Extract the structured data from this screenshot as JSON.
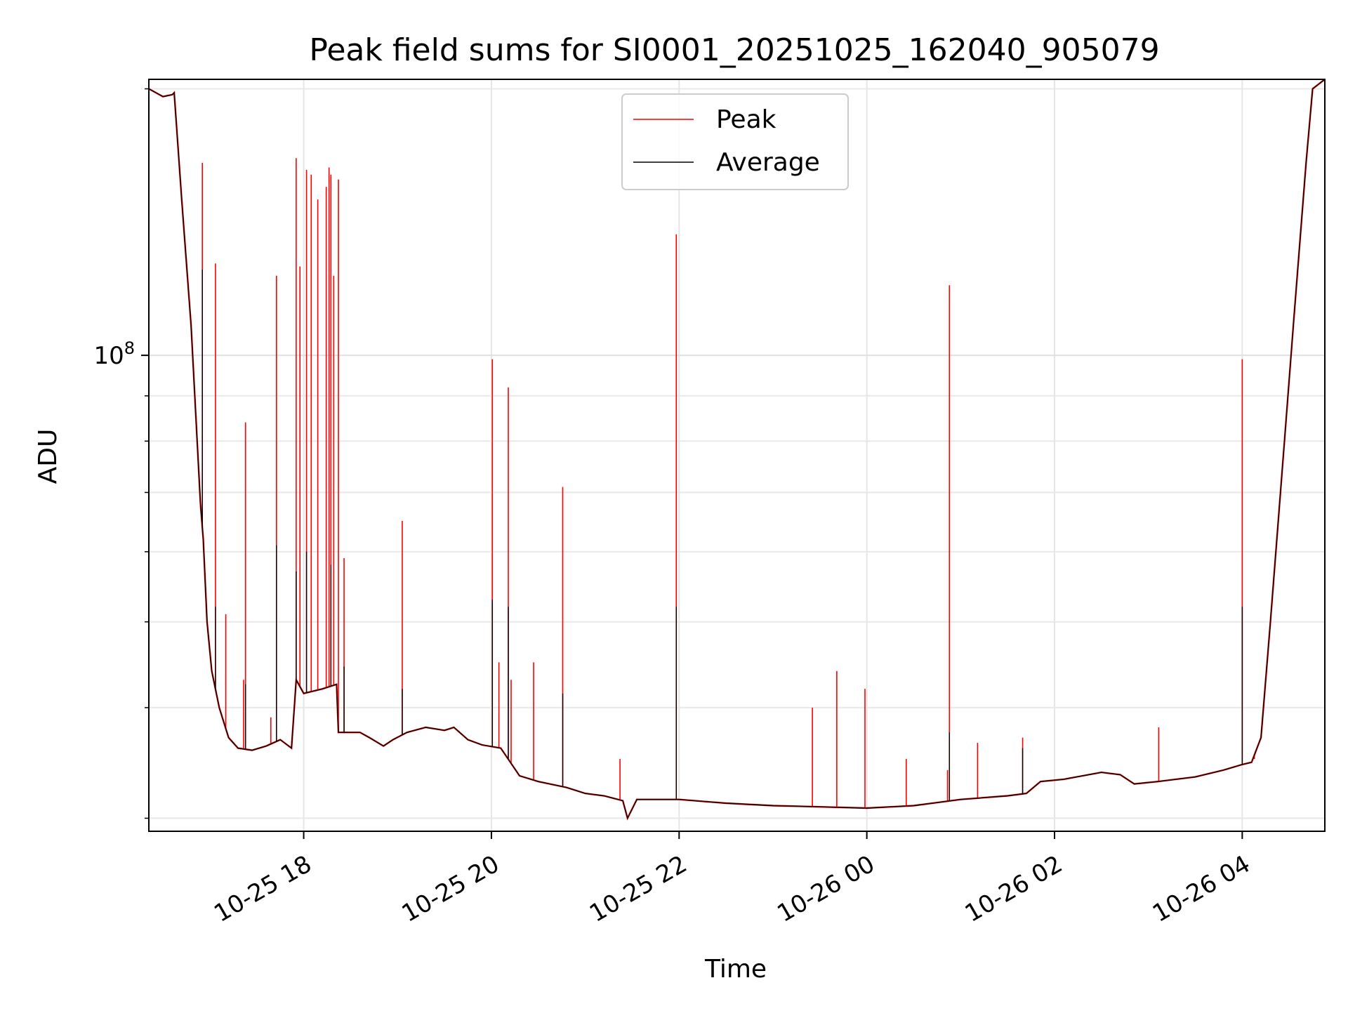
{
  "chart_data": {
    "type": "line",
    "title": "Peak field sums for SI0001_20251025_162040_905079",
    "xlabel": "Time",
    "ylabel": "ADU",
    "yscale": "log",
    "ylim": [
      29000000,
      205000000
    ],
    "xlim_hours": [
      16.35,
      28.88
    ],
    "grid": true,
    "legend_position": "top-center",
    "x_ticks": [
      {
        "hours": 18,
        "label": "10-25 18"
      },
      {
        "hours": 20,
        "label": "10-25 20"
      },
      {
        "hours": 22,
        "label": "10-25 22"
      },
      {
        "hours": 24,
        "label": "10-26 00"
      },
      {
        "hours": 26,
        "label": "10-26 02"
      },
      {
        "hours": 28,
        "label": "10-26 04"
      }
    ],
    "y_major_tick": {
      "value": 100000000,
      "base": "10",
      "exponent": "8"
    },
    "y_minor_ticks": [
      30000000,
      40000000,
      50000000,
      60000000,
      70000000,
      80000000,
      90000000,
      200000000
    ],
    "series": [
      {
        "name": "Peak",
        "color": "#ff0000",
        "baseline": "Average",
        "spikes": [
          {
            "t": 16.92,
            "v": 165000000
          },
          {
            "t": 17.06,
            "v": 127000000
          },
          {
            "t": 17.17,
            "v": 51000000
          },
          {
            "t": 17.38,
            "v": 84000000
          },
          {
            "t": 17.36,
            "v": 43000000
          },
          {
            "t": 17.71,
            "v": 123000000
          },
          {
            "t": 17.65,
            "v": 39000000
          },
          {
            "t": 17.92,
            "v": 167000000
          },
          {
            "t": 17.96,
            "v": 126000000
          },
          {
            "t": 18.03,
            "v": 162000000
          },
          {
            "t": 18.08,
            "v": 160000000
          },
          {
            "t": 18.15,
            "v": 150000000
          },
          {
            "t": 18.24,
            "v": 155000000
          },
          {
            "t": 18.27,
            "v": 163000000
          },
          {
            "t": 18.29,
            "v": 160000000
          },
          {
            "t": 18.32,
            "v": 123000000
          },
          {
            "t": 18.37,
            "v": 158000000
          },
          {
            "t": 18.43,
            "v": 59000000
          },
          {
            "t": 19.05,
            "v": 65000000
          },
          {
            "t": 20.01,
            "v": 99000000
          },
          {
            "t": 20.08,
            "v": 45000000
          },
          {
            "t": 20.18,
            "v": 92000000
          },
          {
            "t": 20.21,
            "v": 43000000
          },
          {
            "t": 20.45,
            "v": 45000000
          },
          {
            "t": 20.76,
            "v": 71000000
          },
          {
            "t": 21.37,
            "v": 35000000
          },
          {
            "t": 21.97,
            "v": 137000000
          },
          {
            "t": 23.42,
            "v": 40000000
          },
          {
            "t": 23.68,
            "v": 44000000
          },
          {
            "t": 23.98,
            "v": 42000000
          },
          {
            "t": 24.42,
            "v": 35000000
          },
          {
            "t": 24.86,
            "v": 34000000
          },
          {
            "t": 24.88,
            "v": 120000000
          },
          {
            "t": 25.18,
            "v": 36500000
          },
          {
            "t": 25.66,
            "v": 37000000
          },
          {
            "t": 27.11,
            "v": 38000000
          },
          {
            "t": 28.0,
            "v": 99000000
          },
          {
            "t": 28.13,
            "v": 35000000
          }
        ]
      },
      {
        "name": "Average",
        "color": "#000000",
        "points": [
          [
            16.35,
            200000000
          ],
          [
            16.5,
            196000000
          ],
          [
            16.6,
            197000000
          ],
          [
            16.62,
            198000000
          ],
          [
            16.7,
            150000000
          ],
          [
            16.8,
            108000000
          ],
          [
            16.9,
            68000000
          ],
          [
            16.93,
            62000000
          ],
          [
            16.97,
            50000000
          ],
          [
            17.02,
            44000000
          ],
          [
            17.1,
            40000000
          ],
          [
            17.2,
            37000000
          ],
          [
            17.3,
            36000000
          ],
          [
            17.45,
            35800000
          ],
          [
            17.6,
            36200000
          ],
          [
            17.75,
            36800000
          ],
          [
            17.87,
            36000000
          ],
          [
            17.92,
            43000000
          ],
          [
            18.0,
            41500000
          ],
          [
            18.2,
            42000000
          ],
          [
            18.35,
            42500000
          ],
          [
            18.37,
            37500000
          ],
          [
            18.6,
            37500000
          ],
          [
            18.7,
            37000000
          ],
          [
            18.85,
            36200000
          ],
          [
            18.95,
            36800000
          ],
          [
            19.1,
            37500000
          ],
          [
            19.3,
            38000000
          ],
          [
            19.5,
            37700000
          ],
          [
            19.6,
            38000000
          ],
          [
            19.75,
            36800000
          ],
          [
            19.9,
            36300000
          ],
          [
            20.1,
            36000000
          ],
          [
            20.3,
            33500000
          ],
          [
            20.5,
            33000000
          ],
          [
            20.8,
            32500000
          ],
          [
            21.0,
            32000000
          ],
          [
            21.2,
            31800000
          ],
          [
            21.4,
            31400000
          ],
          [
            21.45,
            30000000
          ],
          [
            21.55,
            31500000
          ],
          [
            22.0,
            31500000
          ],
          [
            22.5,
            31200000
          ],
          [
            23.0,
            31000000
          ],
          [
            23.5,
            30900000
          ],
          [
            24.0,
            30800000
          ],
          [
            24.5,
            31000000
          ],
          [
            25.0,
            31500000
          ],
          [
            25.5,
            31800000
          ],
          [
            25.7,
            32000000
          ],
          [
            25.85,
            33000000
          ],
          [
            26.1,
            33200000
          ],
          [
            26.3,
            33500000
          ],
          [
            26.5,
            33800000
          ],
          [
            26.7,
            33600000
          ],
          [
            26.85,
            32800000
          ],
          [
            27.1,
            33000000
          ],
          [
            27.5,
            33400000
          ],
          [
            27.8,
            34000000
          ],
          [
            28.0,
            34500000
          ],
          [
            28.1,
            34700000
          ],
          [
            28.2,
            37000000
          ],
          [
            28.3,
            50000000
          ],
          [
            28.45,
            80000000
          ],
          [
            28.55,
            110000000
          ],
          [
            28.68,
            165000000
          ],
          [
            28.75,
            200000000
          ],
          [
            28.88,
            205000000
          ]
        ],
        "spikes": [
          {
            "t": 16.92,
            "v": 125000000
          },
          {
            "t": 17.06,
            "v": 52000000
          },
          {
            "t": 17.38,
            "v": 42500000
          },
          {
            "t": 17.71,
            "v": 61000000
          },
          {
            "t": 17.92,
            "v": 57000000
          },
          {
            "t": 18.03,
            "v": 60000000
          },
          {
            "t": 18.29,
            "v": 58000000
          },
          {
            "t": 18.43,
            "v": 44500000
          },
          {
            "t": 19.05,
            "v": 42000000
          },
          {
            "t": 20.01,
            "v": 53000000
          },
          {
            "t": 20.18,
            "v": 52000000
          },
          {
            "t": 20.76,
            "v": 41500000
          },
          {
            "t": 21.97,
            "v": 52000000
          },
          {
            "t": 24.88,
            "v": 37500000
          },
          {
            "t": 25.66,
            "v": 36000000
          },
          {
            "t": 28.0,
            "v": 52000000
          }
        ]
      }
    ]
  }
}
